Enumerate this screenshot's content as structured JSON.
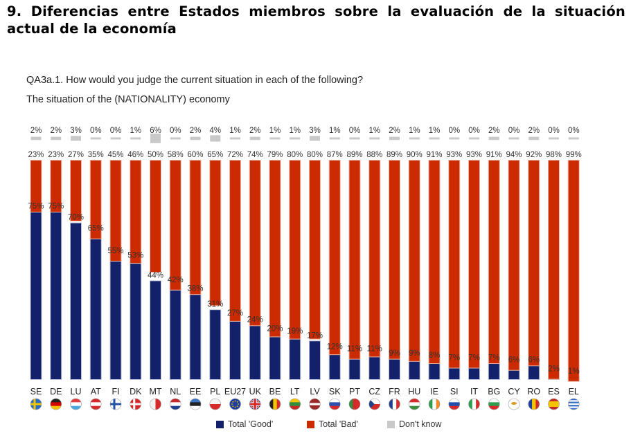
{
  "heading": "9. Diferencias entre Estados miembros sobre la evaluación de la situación actual de la economía",
  "question": "QA3a.1. How would you judge the current situation in each of the following?",
  "subquestion": "The situation of the (NATIONALITY) economy",
  "chart_data": {
    "type": "bar",
    "categories": [
      "SE",
      "DE",
      "LU",
      "AT",
      "FI",
      "DK",
      "MT",
      "NL",
      "EE",
      "PL",
      "EU27",
      "UK",
      "BE",
      "LT",
      "LV",
      "SK",
      "PT",
      "CZ",
      "FR",
      "HU",
      "IE",
      "SI",
      "IT",
      "BG",
      "CY",
      "RO",
      "ES",
      "EL"
    ],
    "series": [
      {
        "name": "Total 'Good'",
        "color": "#13216a",
        "values": [
          75,
          75,
          70,
          65,
          55,
          53,
          44,
          42,
          38,
          31,
          27,
          24,
          20,
          19,
          17,
          12,
          11,
          11,
          9,
          9,
          8,
          7,
          7,
          7,
          6,
          6,
          2,
          1
        ]
      },
      {
        "name": "Total 'Bad'",
        "color": "#cc2a00",
        "values": [
          23,
          23,
          27,
          35,
          45,
          46,
          50,
          58,
          60,
          65,
          72,
          74,
          79,
          80,
          80,
          87,
          89,
          88,
          89,
          90,
          91,
          93,
          93,
          91,
          94,
          92,
          98,
          99
        ]
      },
      {
        "name": "Don't know",
        "color": "#c9c9c9",
        "values": [
          2,
          2,
          3,
          0,
          0,
          1,
          6,
          0,
          2,
          4,
          1,
          2,
          1,
          1,
          3,
          1,
          0,
          1,
          2,
          1,
          1,
          0,
          0,
          2,
          0,
          2,
          0,
          0
        ]
      }
    ],
    "value_suffix": "%",
    "flag_icons": [
      "flag-se",
      "flag-de",
      "flag-lu",
      "flag-at",
      "flag-fi",
      "flag-dk",
      "flag-mt",
      "flag-nl",
      "flag-ee",
      "flag-pl",
      "flag-eu",
      "flag-uk",
      "flag-be",
      "flag-lt",
      "flag-lv",
      "flag-sk",
      "flag-pt",
      "flag-cz",
      "flag-fr",
      "flag-hu",
      "flag-ie",
      "flag-si",
      "flag-it",
      "flag-bg",
      "flag-cy",
      "flag-ro",
      "flag-es",
      "flag-el"
    ],
    "legend_position": "bottom-center",
    "grid": false
  }
}
